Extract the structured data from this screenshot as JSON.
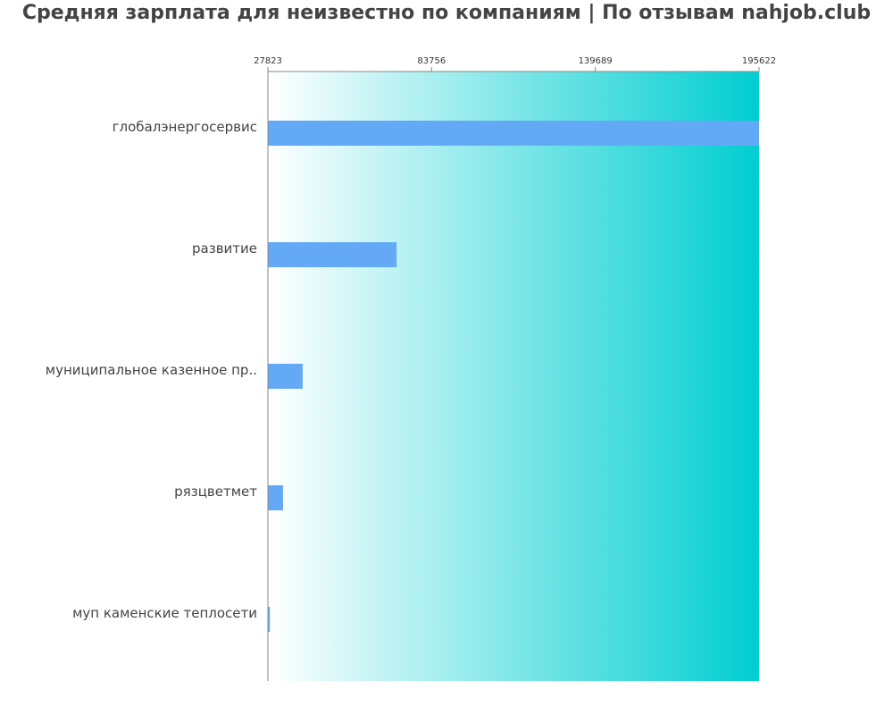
{
  "title": "Средняя зарплата для неизвестно по компаниям  | По отзывам nahjob.club",
  "chart_data": {
    "type": "bar",
    "orientation": "horizontal",
    "categories": [
      "глобалэнергосервис",
      "развитие",
      "муниципальное казенное пр..",
      "рязцветмет",
      "муп каменские теплосети"
    ],
    "values": [
      195622,
      71800,
      39700,
      33000,
      28500
    ],
    "xticks": [
      "27823",
      "83756",
      "139689",
      "195622"
    ],
    "xtick_values": [
      27823,
      83756,
      139689,
      195622
    ],
    "xlim": [
      27823,
      195622
    ],
    "xlabel": "",
    "ylabel": "",
    "grid": false,
    "legend": "none",
    "colors": {
      "bar": "#63a9f5",
      "gradient_start": "#ffffff",
      "gradient_end": "#00ced1",
      "axis": "#888888"
    }
  }
}
